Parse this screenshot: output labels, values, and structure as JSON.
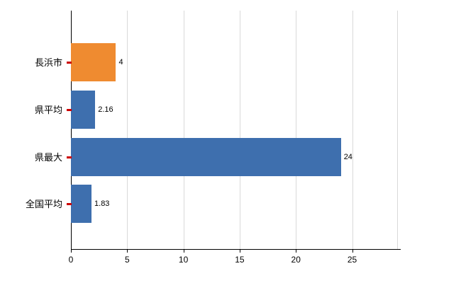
{
  "chart_data": {
    "type": "bar",
    "orientation": "horizontal",
    "title": "",
    "categories": [
      "長浜市",
      "県平均",
      "県最大",
      "全国平均"
    ],
    "values": [
      4,
      2.16,
      24,
      1.83
    ],
    "value_labels": [
      "4",
      "2.16",
      "24",
      "1.83"
    ],
    "bar_colors": [
      "#ef8b30",
      "#3e6fae",
      "#3e6fae",
      "#3e6fae"
    ],
    "xlim": [
      0,
      29
    ],
    "xticks": [
      0,
      5,
      10,
      15,
      20,
      25
    ],
    "grid": "vertical",
    "legend": "none",
    "axis_color": "#000000",
    "gridline_color": "#d9d9d9",
    "category_tick_color": "#cc0000",
    "background_color": "#ffffff"
  }
}
